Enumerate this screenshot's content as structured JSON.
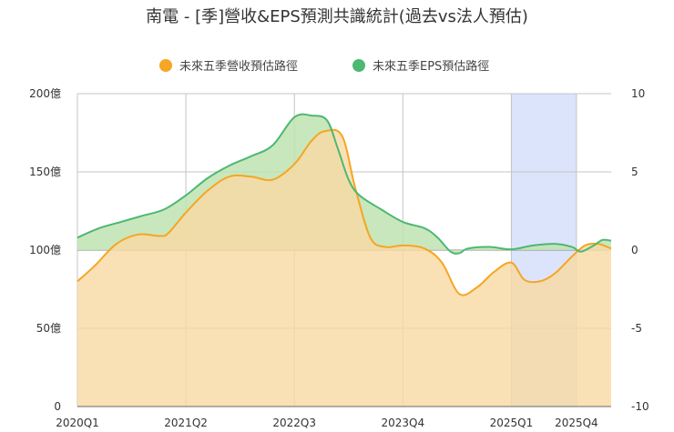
{
  "chart_data": {
    "type": "area",
    "title": "南電 - [季]營收&EPS預測共識統計(過去vs法人預估)",
    "legend_position": "top",
    "x_ticks": [
      "2020Q1",
      "2021Q2",
      "2022Q3",
      "2023Q4",
      "2025Q1",
      "2025Q4"
    ],
    "forecast_shaded_range": [
      "2025Q1",
      "2025Q4"
    ],
    "y_left": {
      "ticks": [
        "0",
        "50億",
        "100億",
        "150億",
        "200億"
      ],
      "range": [
        0,
        200
      ],
      "unit": "億"
    },
    "y_right": {
      "ticks": [
        "-10",
        "-5",
        "0",
        "5",
        "10"
      ],
      "range": [
        -10,
        10
      ]
    },
    "grid": true,
    "series": [
      {
        "name": "未來五季營收預估路徑",
        "axis": "left",
        "color": "#F5A623",
        "fill": "#F9D9A3",
        "points": [
          [
            0,
            80
          ],
          [
            0.8,
            90
          ],
          [
            1.8,
            104
          ],
          [
            2.8,
            110
          ],
          [
            3.8,
            109
          ],
          [
            4.2,
            111
          ],
          [
            5.0,
            124
          ],
          [
            6.0,
            138
          ],
          [
            7.0,
            147
          ],
          [
            8.0,
            147
          ],
          [
            9.0,
            145
          ],
          [
            10.0,
            155
          ],
          [
            10.8,
            170
          ],
          [
            11.4,
            176
          ],
          [
            12.2,
            173
          ],
          [
            12.8,
            140
          ],
          [
            13.5,
            108
          ],
          [
            14.2,
            102
          ],
          [
            15.0,
            103
          ],
          [
            16.0,
            101
          ],
          [
            16.8,
            92
          ],
          [
            17.6,
            72
          ],
          [
            18.4,
            76
          ],
          [
            19.2,
            86
          ],
          [
            20.0,
            92
          ],
          [
            20.6,
            81
          ],
          [
            21.3,
            80
          ],
          [
            22.0,
            85
          ],
          [
            22.8,
            96
          ],
          [
            23.4,
            103
          ],
          [
            24.0,
            104
          ],
          [
            24.6,
            101
          ]
        ]
      },
      {
        "name": "未來五季EPS預估路徑",
        "axis": "right",
        "color": "#4CB872",
        "fill": "#BFE3B2",
        "points": [
          [
            0,
            0.8
          ],
          [
            1.0,
            1.4
          ],
          [
            2.0,
            1.8
          ],
          [
            3.0,
            2.2
          ],
          [
            4.0,
            2.6
          ],
          [
            5.0,
            3.5
          ],
          [
            6.0,
            4.6
          ],
          [
            7.0,
            5.4
          ],
          [
            8.0,
            6.0
          ],
          [
            9.0,
            6.7
          ],
          [
            10.0,
            8.5
          ],
          [
            10.8,
            8.6
          ],
          [
            11.5,
            8.3
          ],
          [
            12.0,
            6.5
          ],
          [
            12.5,
            4.5
          ],
          [
            13.0,
            3.5
          ],
          [
            14.0,
            2.6
          ],
          [
            15.0,
            1.8
          ],
          [
            16.0,
            1.4
          ],
          [
            16.6,
            0.8
          ],
          [
            17.2,
            -0.1
          ],
          [
            17.6,
            -0.2
          ],
          [
            18.0,
            0.1
          ],
          [
            19.0,
            0.2
          ],
          [
            20.0,
            0.05
          ],
          [
            21.0,
            0.3
          ],
          [
            22.0,
            0.4
          ],
          [
            22.8,
            0.2
          ],
          [
            23.2,
            -0.1
          ],
          [
            23.8,
            0.3
          ],
          [
            24.2,
            0.65
          ],
          [
            24.6,
            0.6
          ]
        ]
      }
    ]
  }
}
